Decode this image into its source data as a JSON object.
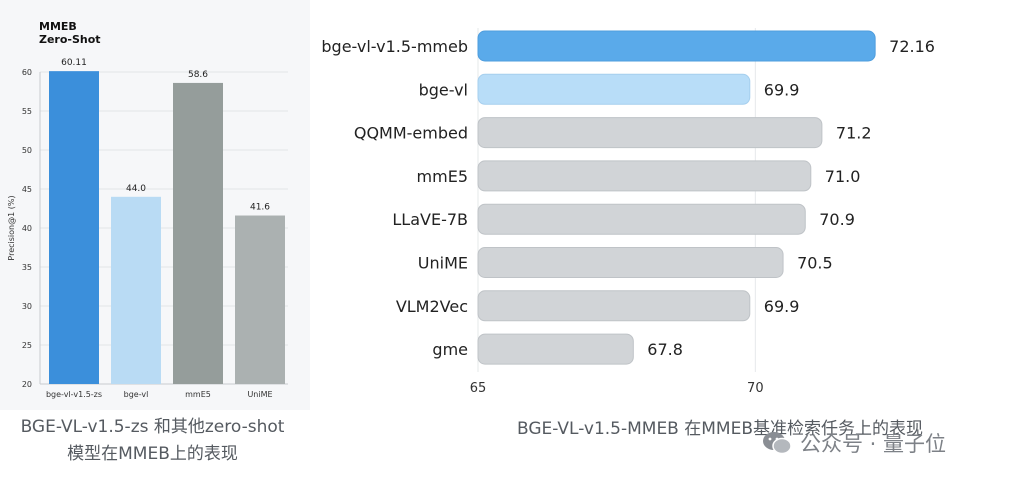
{
  "chart_data": [
    {
      "type": "bar",
      "title": "MMEB\nZero-Shot",
      "ylabel": "Precision@1 (%)",
      "categories": [
        "bge-vl-v1.5-zs",
        "bge-vl",
        "mmE5",
        "UniME"
      ],
      "values": [
        60.11,
        44.0,
        58.6,
        41.6
      ],
      "value_labels": [
        "60.11",
        "44.0",
        "58.6",
        "41.6"
      ],
      "colors": [
        "#3b8fdb",
        "#b9dbf4",
        "#959d9b",
        "#abb1b1"
      ],
      "ylim": [
        20,
        60
      ],
      "yticks": [
        20,
        25,
        30,
        35,
        40,
        45,
        50,
        55,
        60
      ],
      "grid": true
    },
    {
      "type": "bar",
      "orientation": "horizontal",
      "categories": [
        "bge-vl-v1.5-mmeb",
        "bge-vl",
        "QQMM-embed",
        "mmE5",
        "LLaVE-7B",
        "UniME",
        "VLM2Vec",
        "gme"
      ],
      "values": [
        72.16,
        69.9,
        71.2,
        71.0,
        70.9,
        70.5,
        69.9,
        67.8
      ],
      "value_labels": [
        "72.16",
        "69.9",
        "71.2",
        "71.0",
        "70.9",
        "70.5",
        "69.9",
        "67.8"
      ],
      "colors": [
        "#5aaaea",
        "#b8ddf8",
        "#d1d4d7",
        "#d1d4d7",
        "#d1d4d7",
        "#d1d4d7",
        "#d1d4d7",
        "#d1d4d7"
      ],
      "xlim": [
        65,
        72.5
      ],
      "xticks": [
        65,
        70
      ],
      "grid": true
    }
  ],
  "captions": {
    "left_line1": "BGE-VL-v1.5-zs 和其他zero-shot",
    "left_line2": "模型在MMEB上的表现",
    "right": "BGE-VL-v1.5-MMEB 在MMEB基准检索任务上的表现"
  },
  "watermark": {
    "text": "公众号 · 量子位",
    "icon": "wechat-icon"
  }
}
